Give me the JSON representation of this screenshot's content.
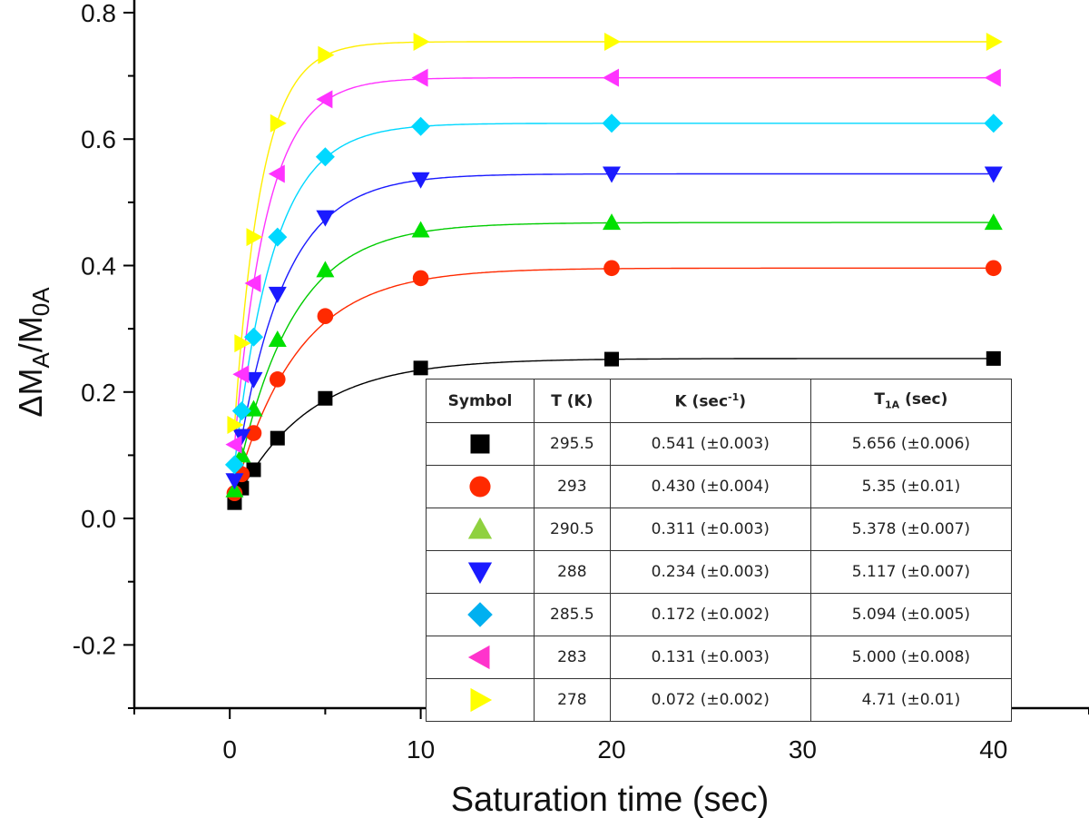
{
  "chart_data": {
    "type": "scatter",
    "title": "",
    "xlabel": "Saturation time (sec)",
    "ylabel": "ΔM_A/M_0A",
    "xlim": [
      -5,
      45
    ],
    "ylim": [
      -0.3,
      0.82
    ],
    "x_ticks": [
      0,
      10,
      20,
      30,
      40
    ],
    "y_ticks": [
      -0.2,
      0.0,
      0.2,
      0.4,
      0.6,
      0.8
    ],
    "x_tick_labels": [
      "0",
      "10",
      "20",
      "30",
      "40"
    ],
    "y_tick_labels": [
      "-0.2",
      "0.0",
      "0.2",
      "0.4",
      "0.6",
      "0.8"
    ],
    "grid": false,
    "x": [
      0.25,
      0.625,
      1.25,
      2.5,
      5,
      10,
      20,
      40
    ],
    "series": [
      {
        "name": "295.5 K",
        "marker": "square",
        "color": "#000000",
        "line_color": "#000000",
        "fit_plateau": 0.253,
        "fit_k": 0.26,
        "values": [
          0.025,
          0.048,
          0.077,
          0.127,
          0.19,
          0.238,
          0.252,
          0.253
        ]
      },
      {
        "name": "293 K",
        "marker": "circle",
        "color": "#ff2a00",
        "line_color": "#ff2a00",
        "fit_plateau": 0.396,
        "fit_k": 0.3,
        "values": [
          0.04,
          0.07,
          0.135,
          0.22,
          0.32,
          0.38,
          0.396,
          0.396
        ]
      },
      {
        "name": "290.5 K",
        "marker": "triangle-up",
        "color": "#00e000",
        "line_color": "#00cc00",
        "fit_plateau": 0.468,
        "fit_k": 0.34,
        "values": [
          0.045,
          0.1,
          0.173,
          0.283,
          0.393,
          0.456,
          0.468,
          0.468
        ]
      },
      {
        "name": "288 K",
        "marker": "triangle-down",
        "color": "#1a1aff",
        "line_color": "#1a1aff",
        "fit_plateau": 0.545,
        "fit_k": 0.4,
        "values": [
          0.06,
          0.13,
          0.22,
          0.355,
          0.476,
          0.536,
          0.545,
          0.545
        ]
      },
      {
        "name": "285.5 K",
        "marker": "diamond",
        "color": "#00d8ff",
        "line_color": "#00d8ff",
        "fit_plateau": 0.625,
        "fit_k": 0.48,
        "values": [
          0.085,
          0.17,
          0.287,
          0.445,
          0.572,
          0.62,
          0.625,
          0.625
        ]
      },
      {
        "name": "283 K",
        "marker": "triangle-left",
        "color": "#ff33ff",
        "line_color": "#ff33ff",
        "fit_plateau": 0.697,
        "fit_k": 0.58,
        "values": [
          0.117,
          0.228,
          0.372,
          0.545,
          0.663,
          0.697,
          0.697,
          0.697
        ]
      },
      {
        "name": "278 K",
        "marker": "triangle-right",
        "color": "#ffff00",
        "line_color": "#ffee00",
        "fit_plateau": 0.754,
        "fit_k": 0.7,
        "values": [
          0.148,
          0.277,
          0.445,
          0.625,
          0.733,
          0.754,
          0.754,
          0.754
        ]
      }
    ],
    "table": {
      "headers": [
        "Symbol",
        "T (K)",
        "K (sec",
        "-1",
        ")",
        "T",
        "1A",
        " (sec)"
      ],
      "rows": [
        {
          "marker": "square",
          "color": "#000000",
          "T": "295.5",
          "K": "0.541 (±0.003)",
          "T1A": "5.656 (±0.006)"
        },
        {
          "marker": "circle",
          "color": "#ff2a00",
          "T": "293",
          "K": "0.430 (±0.004)",
          "T1A": "5.35 (±0.01)"
        },
        {
          "marker": "triangle-up",
          "color": "#8fd13f",
          "T": "290.5",
          "K": "0.311 (±0.003)",
          "T1A": "5.378 (±0.007)"
        },
        {
          "marker": "triangle-down",
          "color": "#1a1aff",
          "T": "288",
          "K": "0.234 (±0.003)",
          "T1A": "5.117 (±0.007)"
        },
        {
          "marker": "diamond",
          "color": "#00b0f0",
          "T": "285.5",
          "K": "0.172 (±0.002)",
          "T1A": "5.094 (±0.005)"
        },
        {
          "marker": "triangle-left",
          "color": "#ff33cc",
          "T": "283",
          "K": "0.131 (±0.003)",
          "T1A": "5.000 (±0.008)"
        },
        {
          "marker": "triangle-right",
          "color": "#ffff00",
          "T": "278",
          "K": "0.072 (±0.002)",
          "T1A": "4.71 (±0.01)"
        }
      ]
    }
  }
}
